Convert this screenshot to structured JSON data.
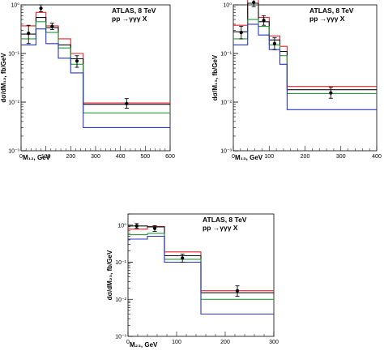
{
  "chart_data": [
    {
      "type": "step-histogram",
      "annotation": [
        "ATLAS, 8 TeV",
        "pp →γγγ X"
      ],
      "xlabel": "M₁₂, GeV",
      "ylabel": "dσ/dM₁₂, fb/GeV",
      "ylog": true,
      "xlim": [
        0,
        600
      ],
      "ylim": [
        0.001,
        1
      ],
      "xticks": [
        0,
        100,
        200,
        300,
        400,
        500,
        600
      ],
      "yticks": [
        {
          "v": 0.001,
          "l": "10⁻³"
        },
        {
          "v": 0.01,
          "l": "10⁻²"
        },
        {
          "v": 0.1,
          "l": "10⁻¹"
        },
        {
          "v": 1,
          "l": "10⁰"
        }
      ],
      "bins": [
        0,
        60,
        100,
        150,
        200,
        250,
        600
      ],
      "series": [
        {
          "color": "#e8222a",
          "values": [
            0.37,
            0.7,
            0.37,
            0.2,
            0.1,
            0.0096
          ]
        },
        {
          "color": "#111111",
          "values": [
            0.25,
            0.55,
            0.34,
            0.15,
            0.078,
            0.009
          ]
        },
        {
          "color": "#2a9a3e",
          "values": [
            0.2,
            0.45,
            0.27,
            0.13,
            0.06,
            0.006
          ]
        },
        {
          "color": "#2a35c8",
          "values": [
            0.15,
            0.32,
            0.16,
            0.08,
            0.04,
            0.003
          ]
        }
      ],
      "points": [
        {
          "x": 30,
          "y": 0.26,
          "lo": 0.16,
          "hi": 0.38
        },
        {
          "x": 80,
          "y": 0.85,
          "lo": 0.72,
          "hi": 1.0
        },
        {
          "x": 125,
          "y": 0.36,
          "lo": 0.31,
          "hi": 0.42
        },
        {
          "x": 225,
          "y": 0.07,
          "lo": 0.052,
          "hi": 0.09
        },
        {
          "x": 425,
          "y": 0.0093,
          "lo": 0.0075,
          "hi": 0.0118
        }
      ]
    },
    {
      "type": "step-histogram",
      "annotation": [
        "ATLAS, 8 TeV",
        "pp →γγγ X"
      ],
      "xlabel": "M₁₃, GeV",
      "ylabel": "dσ/M₁₃, fb/GeV",
      "ylog": true,
      "xlim": [
        0,
        400
      ],
      "ylim": [
        0.001,
        1
      ],
      "xticks": [
        0,
        100,
        200,
        300,
        400
      ],
      "yticks": [
        {
          "v": 0.001,
          "l": "10⁻³"
        },
        {
          "v": 0.01,
          "l": "10⁻²"
        },
        {
          "v": 0.1,
          "l": "10⁻¹"
        },
        {
          "v": 1,
          "l": "10⁰"
        }
      ],
      "bins": [
        0,
        40,
        70,
        100,
        130,
        150,
        400
      ],
      "series": [
        {
          "color": "#e8222a",
          "values": [
            0.38,
            1.3,
            0.55,
            0.23,
            0.14,
            0.021
          ]
        },
        {
          "color": "#111111",
          "values": [
            0.28,
            1.08,
            0.45,
            0.19,
            0.11,
            0.018
          ]
        },
        {
          "color": "#2a9a3e",
          "values": [
            0.2,
            0.5,
            0.36,
            0.15,
            0.09,
            0.015
          ]
        },
        {
          "color": "#2a35c8",
          "values": [
            0.15,
            0.4,
            0.24,
            0.12,
            0.06,
            0.007
          ]
        }
      ],
      "points": [
        {
          "x": 22,
          "y": 0.27,
          "lo": 0.2,
          "hi": 0.36
        },
        {
          "x": 57,
          "y": 1.12,
          "lo": 0.92,
          "hi": 1.35
        },
        {
          "x": 85,
          "y": 0.48,
          "lo": 0.38,
          "hi": 0.6
        },
        {
          "x": 115,
          "y": 0.16,
          "lo": 0.12,
          "hi": 0.21
        },
        {
          "x": 272,
          "y": 0.0155,
          "lo": 0.012,
          "hi": 0.02
        }
      ]
    },
    {
      "type": "step-histogram",
      "annotation": [
        "ATLAS, 8 TeV",
        "pp →γγγ X"
      ],
      "xlabel": "M₂₃, GeV",
      "ylabel": "dσ/dM₂₃, fb/GeV",
      "ylog": true,
      "xlim": [
        0,
        300
      ],
      "ylim": [
        0.001,
        2
      ],
      "xticks": [
        0,
        100,
        200,
        300
      ],
      "yticks": [
        {
          "v": 0.001,
          "l": "10⁻³"
        },
        {
          "v": 0.01,
          "l": "10⁻²"
        },
        {
          "v": 0.1,
          "l": "10⁻¹"
        },
        {
          "v": 1,
          "l": "10⁰"
        }
      ],
      "bins": [
        0,
        40,
        75,
        150,
        300
      ],
      "series": [
        {
          "color": "#e8222a",
          "values": [
            0.78,
            0.92,
            0.19,
            0.017
          ]
        },
        {
          "color": "#111111",
          "values": [
            0.95,
            0.9,
            0.15,
            0.015
          ]
        },
        {
          "color": "#2a9a3e",
          "values": [
            0.55,
            0.6,
            0.12,
            0.01
          ]
        },
        {
          "color": "#2a35c8",
          "values": [
            0.42,
            0.5,
            0.1,
            0.004
          ]
        }
      ],
      "points": [
        {
          "x": 18,
          "y": 0.95,
          "lo": 0.82,
          "hi": 1.1
        },
        {
          "x": 55,
          "y": 0.82,
          "lo": 0.68,
          "hi": 0.97
        },
        {
          "x": 112,
          "y": 0.13,
          "lo": 0.1,
          "hi": 0.165
        },
        {
          "x": 225,
          "y": 0.017,
          "lo": 0.012,
          "hi": 0.023
        }
      ]
    }
  ]
}
